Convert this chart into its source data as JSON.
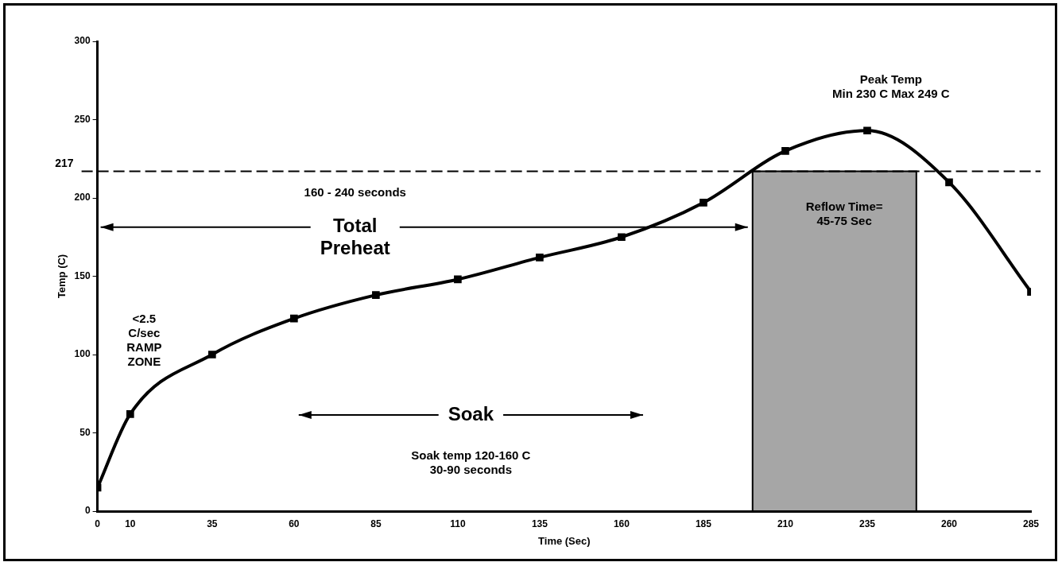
{
  "chart_data": {
    "type": "line",
    "xlabel": "Time (Sec)",
    "ylabel": "Temp (C)",
    "x": [
      0,
      10,
      35,
      60,
      85,
      110,
      135,
      160,
      185,
      210,
      235,
      260,
      285
    ],
    "series": [
      {
        "color": "#000000",
        "values": [
          15,
          62,
          100,
          123,
          138,
          148,
          162,
          175,
          197,
          230,
          243,
          210,
          140
        ]
      }
    ],
    "xlim": [
      0,
      285
    ],
    "xticks": [
      0,
      10,
      35,
      60,
      85,
      110,
      135,
      160,
      185,
      210,
      235,
      260,
      285
    ],
    "ylim": [
      0,
      300
    ],
    "yticks": [
      0,
      50,
      100,
      150,
      200,
      250,
      300
    ],
    "marker": "square",
    "grid": false,
    "legend": false,
    "ref_lines": [
      {
        "axis": "y",
        "value": 217,
        "label": "217",
        "line_style": "dashed"
      }
    ],
    "bands": [
      {
        "axis": "x",
        "from": 200,
        "to": 250,
        "color": "#a6a6a6"
      }
    ],
    "annotations": [
      "Peak Temp\nMin 230 C Max 249 C",
      "Reflow Time=\n45-75 Sec",
      "160 - 240 seconds",
      "Total\nPreheat",
      "Soak",
      "Soak temp 120-160 C\n30-90 seconds",
      "<2.5\nC/sec\nRAMP\nZONE"
    ]
  }
}
